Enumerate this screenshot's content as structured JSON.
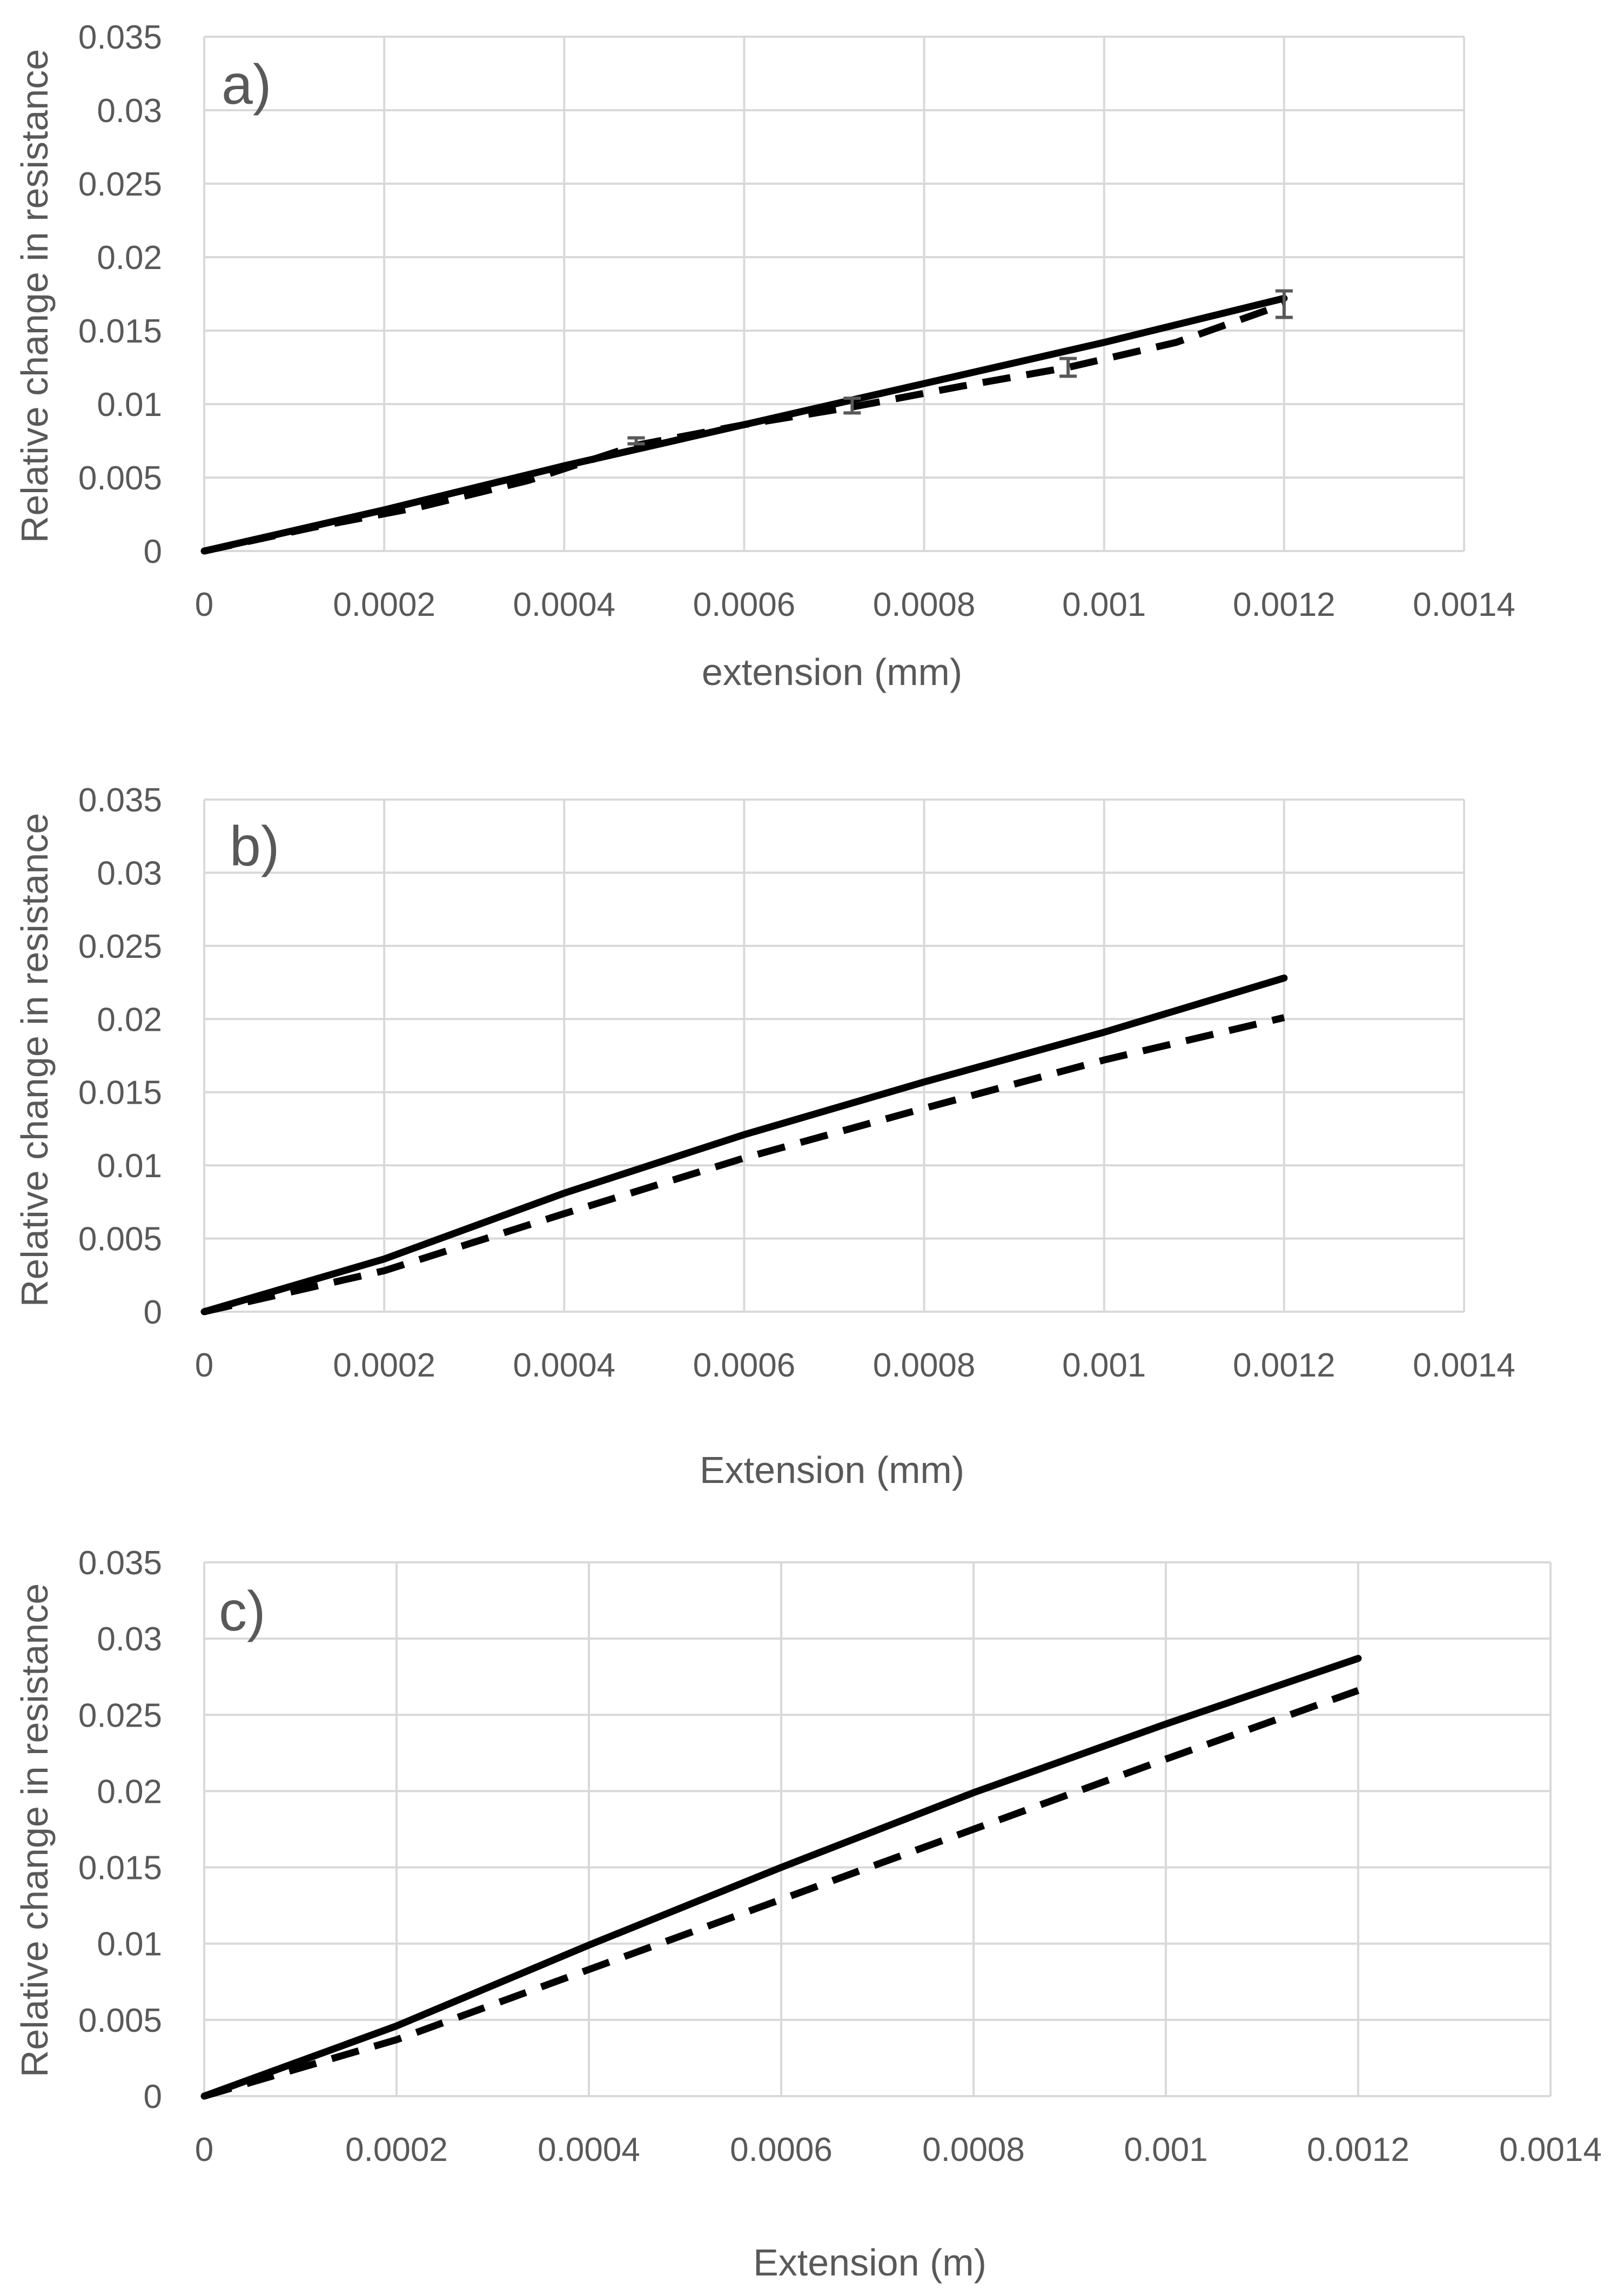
{
  "chart_data": [
    {
      "type": "line",
      "panel_label": "a)",
      "xlabel": "extension (mm)",
      "ylabel": "Relative change in resistance",
      "xlim": [
        0,
        0.0014
      ],
      "ylim": [
        0,
        0.035
      ],
      "x_ticks": [
        "0",
        "0.0002",
        "0.0004",
        "0.0006",
        "0.0008",
        "0.001",
        "0.0012",
        "0.0014"
      ],
      "y_ticks": [
        "0",
        "0.005",
        "0.01",
        "0.015",
        "0.02",
        "0.025",
        "0.03",
        "0.035"
      ],
      "grid": true,
      "series": [
        {
          "name": "solid",
          "style": "solid",
          "x": [
            0,
            0.0002,
            0.0004,
            0.0006,
            0.0008,
            0.001,
            0.0012
          ],
          "y": [
            0,
            0.0028,
            0.0058,
            0.0086,
            0.0114,
            0.0142,
            0.0172
          ]
        },
        {
          "name": "dashed",
          "style": "dashed",
          "x": [
            0,
            0.00012,
            0.00024,
            0.00036,
            0.00048,
            0.0006,
            0.00072,
            0.00084,
            0.00096,
            0.00108,
            0.0012
          ],
          "y": [
            0,
            0.0016,
            0.003,
            0.0048,
            0.0072,
            0.0086,
            0.0098,
            0.0112,
            0.0125,
            0.0142,
            0.0168
          ],
          "error_bars": {
            "x": [
              0.00048,
              0.00072,
              0.00096,
              0.0012
            ],
            "lo": [
              0.0073,
              0.0094,
              0.0119,
              0.0159
            ],
            "hi": [
              0.0077,
              0.0104,
              0.0131,
              0.0177
            ]
          }
        }
      ]
    },
    {
      "type": "line",
      "panel_label": "b)",
      "xlabel": "Extension (mm)",
      "ylabel": "Relative change in resistance",
      "xlim": [
        0,
        0.0014
      ],
      "ylim": [
        0,
        0.035
      ],
      "x_ticks": [
        "0",
        "0.0002",
        "0.0004",
        "0.0006",
        "0.0008",
        "0.001",
        "0.0012",
        "0.0014"
      ],
      "y_ticks": [
        "0",
        "0.005",
        "0.01",
        "0.015",
        "0.02",
        "0.025",
        "0.03",
        "0.035"
      ],
      "grid": true,
      "series": [
        {
          "name": "solid",
          "style": "solid",
          "x": [
            0,
            0.0002,
            0.0004,
            0.0006,
            0.0008,
            0.001,
            0.0012
          ],
          "y": [
            0,
            0.0036,
            0.0081,
            0.0121,
            0.0157,
            0.0191,
            0.0228
          ]
        },
        {
          "name": "dashed",
          "style": "dashed",
          "x": [
            0,
            0.0002,
            0.0004,
            0.0006,
            0.0008,
            0.001,
            0.0012
          ],
          "y": [
            0,
            0.0028,
            0.0067,
            0.0105,
            0.0139,
            0.0172,
            0.0201
          ]
        }
      ]
    },
    {
      "type": "line",
      "panel_label": "c)",
      "xlabel": "Extension (m)",
      "ylabel": "Relative change in resistance",
      "xlim": [
        0,
        0.0014
      ],
      "ylim": [
        0,
        0.035
      ],
      "x_ticks": [
        "0",
        "0.0002",
        "0.0004",
        "0.0006",
        "0.0008",
        "0.001",
        "0.0012",
        "0.0014"
      ],
      "y_ticks": [
        "0",
        "0.005",
        "0.01",
        "0.015",
        "0.02",
        "0.025",
        "0.03",
        "0.035"
      ],
      "grid": true,
      "series": [
        {
          "name": "solid",
          "style": "solid",
          "x": [
            0,
            0.0002,
            0.0004,
            0.0006,
            0.0008,
            0.001,
            0.0012
          ],
          "y": [
            0,
            0.0046,
            0.0099,
            0.015,
            0.0199,
            0.0244,
            0.0287
          ]
        },
        {
          "name": "dashed",
          "style": "dashed",
          "x": [
            0,
            0.0002,
            0.0004,
            0.0006,
            0.0008,
            0.001,
            0.0012
          ],
          "y": [
            0,
            0.0037,
            0.0083,
            0.0129,
            0.0175,
            0.0221,
            0.0266
          ]
        }
      ]
    }
  ]
}
